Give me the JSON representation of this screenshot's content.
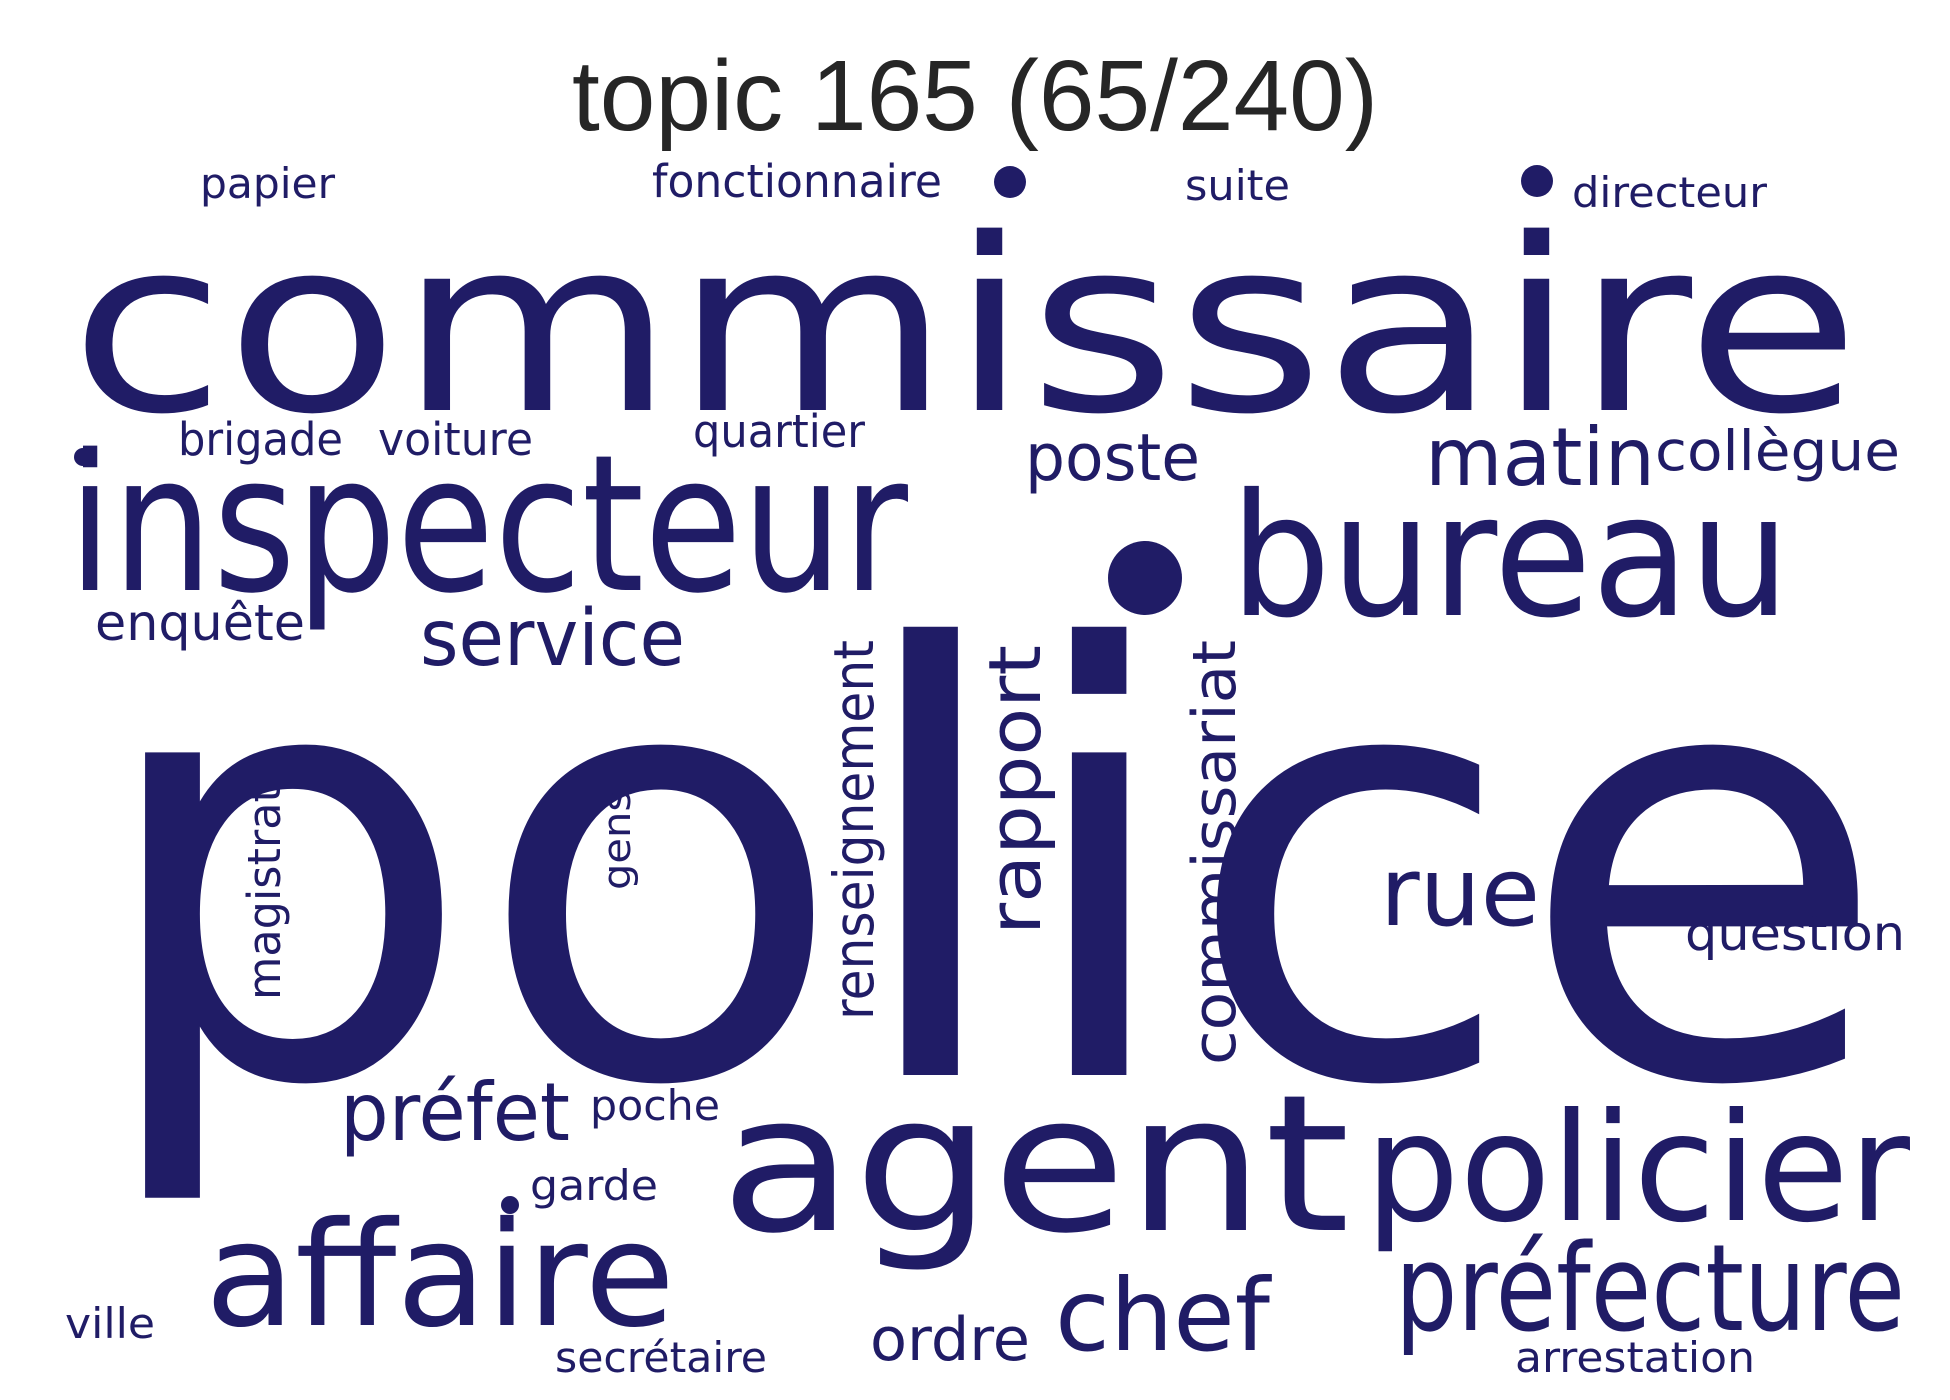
{
  "title": "topic 165 (65/240)",
  "word_color": "#201c66",
  "title_color": "#262626",
  "words": [
    {
      "text": "commissaire"
    },
    {
      "text": "police"
    },
    {
      "text": "inspecteur"
    },
    {
      "text": "bureau"
    },
    {
      "text": "agent"
    },
    {
      "text": "policier"
    },
    {
      "text": "affaire"
    },
    {
      "text": "préfecture"
    },
    {
      "text": "chef"
    },
    {
      "text": "rue"
    },
    {
      "text": "préfet"
    },
    {
      "text": "service"
    },
    {
      "text": "matin"
    },
    {
      "text": "poste"
    },
    {
      "text": "rapport"
    },
    {
      "text": "commissariat"
    },
    {
      "text": "renseignement"
    },
    {
      "text": "collègue"
    },
    {
      "text": "ordre"
    },
    {
      "text": "enquête"
    },
    {
      "text": "question"
    },
    {
      "text": "magistrat"
    },
    {
      "text": "brigade"
    },
    {
      "text": "voiture"
    },
    {
      "text": "quartier"
    },
    {
      "text": "fonctionnaire"
    },
    {
      "text": "papier"
    },
    {
      "text": "suite"
    },
    {
      "text": "directeur"
    },
    {
      "text": "poche"
    },
    {
      "text": "garde"
    },
    {
      "text": "gens"
    },
    {
      "text": "secrétaire"
    },
    {
      "text": "arrestation"
    },
    {
      "text": "ville"
    }
  ],
  "dots": [
    {
      "name": "dot-small-top-1"
    },
    {
      "name": "dot-small-top-2"
    },
    {
      "name": "dot-small-left"
    },
    {
      "name": "dot-large"
    },
    {
      "name": "dot-small-garde"
    }
  ]
}
